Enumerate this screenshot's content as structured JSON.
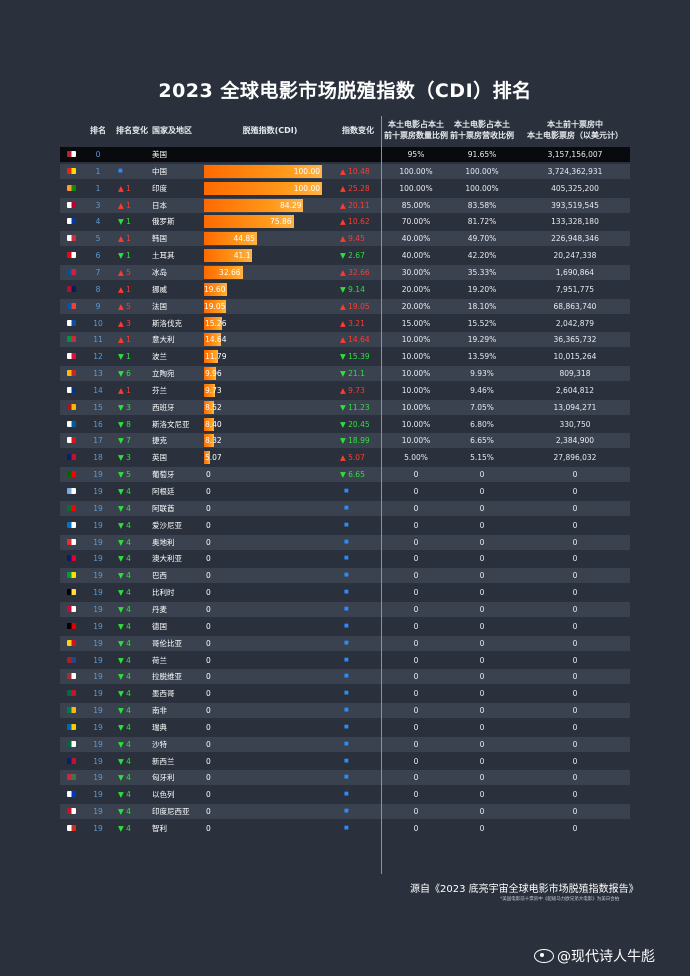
{
  "title": "2023 全球电影市场脱殖指数（CDI）排名",
  "headers": {
    "rank": "排名",
    "change": "排名变化",
    "country": "国家及地区",
    "cdi": "脱殖指数(CDI)",
    "index_change": "指数变化",
    "count_ratio_1": "本土电影占本土",
    "count_ratio_2": "前十票房数量比例",
    "revenue_ratio_1": "本土电影占本土",
    "revenue_ratio_2": "前十票房营收比例",
    "box_office_1": "本土前十票房中",
    "box_office_2": "本土电影票房（以美元计）"
  },
  "source": "源自《2023 底亮宇宙全球电影市场脱殖指数报告》",
  "note": "*美国电影前十票房中《超级马力欧兄弟大电影》为美日合拍",
  "watermark": "@现代诗人牛彪",
  "colors": {
    "up": "#ff3b2f",
    "down": "#2ee03a",
    "flat": "#2b8cff",
    "bar": "#ff7a00"
  },
  "chart_data": {
    "type": "table",
    "title": "2023 全球电影市场脱殖指数（CDI）排名",
    "rows": [
      {
        "rank": "0",
        "change_dir": "none",
        "change": "",
        "country": "美国",
        "cdi": null,
        "cdi_label": "",
        "idx_dir": "none",
        "idx_change": "",
        "count_ratio": "95%",
        "revenue_ratio": "91.65%",
        "box_office": "3,157,156,007",
        "flag": [
          "#b22234",
          "#ffffff"
        ]
      },
      {
        "rank": "1",
        "change_dir": "flat",
        "change": "",
        "country": "中国",
        "cdi": 100,
        "cdi_label": "100.00",
        "idx_dir": "up",
        "idx_change": "10.48",
        "count_ratio": "100.00%",
        "revenue_ratio": "100.00%",
        "box_office": "3,724,362,931",
        "flag": [
          "#de2910",
          "#ffde00"
        ]
      },
      {
        "rank": "1",
        "change_dir": "up",
        "change": "1",
        "country": "印度",
        "cdi": 100,
        "cdi_label": "100.00",
        "idx_dir": "up",
        "idx_change": "25.28",
        "count_ratio": "100.00%",
        "revenue_ratio": "100.00%",
        "box_office": "405,325,200",
        "flag": [
          "#ff9933",
          "#138808"
        ]
      },
      {
        "rank": "3",
        "change_dir": "up",
        "change": "1",
        "country": "日本",
        "cdi": 84.29,
        "cdi_label": "84.29",
        "idx_dir": "up",
        "idx_change": "20.11",
        "count_ratio": "85.00%",
        "revenue_ratio": "83.58%",
        "box_office": "393,519,545",
        "flag": [
          "#ffffff",
          "#bc002d"
        ]
      },
      {
        "rank": "4",
        "change_dir": "down",
        "change": "1",
        "country": "俄罗斯",
        "cdi": 75.86,
        "cdi_label": "75.86",
        "idx_dir": "up",
        "idx_change": "10.62",
        "count_ratio": "70.00%",
        "revenue_ratio": "81.72%",
        "box_office": "133,328,180",
        "flag": [
          "#ffffff",
          "#0039a6"
        ]
      },
      {
        "rank": "5",
        "change_dir": "up",
        "change": "1",
        "country": "韩国",
        "cdi": 44.85,
        "cdi_label": "44.85",
        "idx_dir": "up",
        "idx_change": "9.45",
        "count_ratio": "40.00%",
        "revenue_ratio": "49.70%",
        "box_office": "226,948,346",
        "flag": [
          "#ffffff",
          "#cd2e3a"
        ]
      },
      {
        "rank": "6",
        "change_dir": "down",
        "change": "1",
        "country": "土耳其",
        "cdi": 41.1,
        "cdi_label": "41.1",
        "idx_dir": "down",
        "idx_change": "2.67",
        "count_ratio": "40.00%",
        "revenue_ratio": "42.20%",
        "box_office": "20,247,338",
        "flag": [
          "#e30a17",
          "#ffffff"
        ]
      },
      {
        "rank": "7",
        "change_dir": "up",
        "change": "5",
        "country": "冰岛",
        "cdi": 32.66,
        "cdi_label": "32.66",
        "idx_dir": "up",
        "idx_change": "32.66",
        "count_ratio": "30.00%",
        "revenue_ratio": "35.33%",
        "box_office": "1,690,864",
        "flag": [
          "#02529c",
          "#dc1e35"
        ]
      },
      {
        "rank": "8",
        "change_dir": "up",
        "change": "1",
        "country": "挪威",
        "cdi": 19.6,
        "cdi_label": "19.60",
        "idx_dir": "down",
        "idx_change": "9.14",
        "count_ratio": "20.00%",
        "revenue_ratio": "19.20%",
        "box_office": "7,951,775",
        "flag": [
          "#ba0c2f",
          "#00205b"
        ]
      },
      {
        "rank": "9",
        "change_dir": "up",
        "change": "5",
        "country": "法国",
        "cdi": 19.05,
        "cdi_label": "19.05",
        "idx_dir": "up",
        "idx_change": "19.05",
        "count_ratio": "20.00%",
        "revenue_ratio": "18.10%",
        "box_office": "68,863,740",
        "flag": [
          "#0055a4",
          "#ef4135"
        ]
      },
      {
        "rank": "10",
        "change_dir": "up",
        "change": "3",
        "country": "斯洛伐克",
        "cdi": 15.26,
        "cdi_label": "15.26",
        "idx_dir": "up",
        "idx_change": "3.21",
        "count_ratio": "15.00%",
        "revenue_ratio": "15.52%",
        "box_office": "2,042,879",
        "flag": [
          "#ffffff",
          "#0b4ea2"
        ]
      },
      {
        "rank": "11",
        "change_dir": "up",
        "change": "1",
        "country": "意大利",
        "cdi": 14.64,
        "cdi_label": "14.64",
        "idx_dir": "up",
        "idx_change": "14.64",
        "count_ratio": "10.00%",
        "revenue_ratio": "19.29%",
        "box_office": "36,365,732",
        "flag": [
          "#009246",
          "#ce2b37"
        ]
      },
      {
        "rank": "12",
        "change_dir": "down",
        "change": "1",
        "country": "波兰",
        "cdi": 11.79,
        "cdi_label": "11.79",
        "idx_dir": "down",
        "idx_change": "15.39",
        "count_ratio": "10.00%",
        "revenue_ratio": "13.59%",
        "box_office": "10,015,264",
        "flag": [
          "#ffffff",
          "#dc143c"
        ]
      },
      {
        "rank": "13",
        "change_dir": "down",
        "change": "6",
        "country": "立陶宛",
        "cdi": 9.96,
        "cdi_label": "9.96",
        "idx_dir": "down",
        "idx_change": "21.1",
        "count_ratio": "10.00%",
        "revenue_ratio": "9.93%",
        "box_office": "809,318",
        "flag": [
          "#fdb913",
          "#c1272d"
        ]
      },
      {
        "rank": "14",
        "change_dir": "up",
        "change": "1",
        "country": "芬兰",
        "cdi": 9.73,
        "cdi_label": "9.73",
        "idx_dir": "up",
        "idx_change": "9.73",
        "count_ratio": "10.00%",
        "revenue_ratio": "9.46%",
        "box_office": "2,604,812",
        "flag": [
          "#ffffff",
          "#003580"
        ]
      },
      {
        "rank": "15",
        "change_dir": "down",
        "change": "3",
        "country": "西班牙",
        "cdi": 8.52,
        "cdi_label": "8.52",
        "idx_dir": "down",
        "idx_change": "11.23",
        "count_ratio": "10.00%",
        "revenue_ratio": "7.05%",
        "box_office": "13,094,271",
        "flag": [
          "#aa151b",
          "#f1bf00"
        ]
      },
      {
        "rank": "16",
        "change_dir": "down",
        "change": "8",
        "country": "斯洛文尼亚",
        "cdi": 8.4,
        "cdi_label": "8.40",
        "idx_dir": "down",
        "idx_change": "20.45",
        "count_ratio": "10.00%",
        "revenue_ratio": "6.80%",
        "box_office": "330,750",
        "flag": [
          "#ffffff",
          "#005da4"
        ]
      },
      {
        "rank": "17",
        "change_dir": "down",
        "change": "7",
        "country": "捷克",
        "cdi": 8.32,
        "cdi_label": "8.32",
        "idx_dir": "down",
        "idx_change": "18.99",
        "count_ratio": "10.00%",
        "revenue_ratio": "6.65%",
        "box_office": "2,384,900",
        "flag": [
          "#ffffff",
          "#d7141a"
        ]
      },
      {
        "rank": "18",
        "change_dir": "down",
        "change": "3",
        "country": "英国",
        "cdi": 5.07,
        "cdi_label": "5.07",
        "idx_dir": "up",
        "idx_change": "5.07",
        "count_ratio": "5.00%",
        "revenue_ratio": "5.15%",
        "box_office": "27,896,032",
        "flag": [
          "#012169",
          "#c8102e"
        ]
      },
      {
        "rank": "19",
        "change_dir": "down",
        "change": "5",
        "country": "葡萄牙",
        "cdi": 0,
        "cdi_label": "0",
        "idx_dir": "down",
        "idx_change": "6.65",
        "count_ratio": "0",
        "revenue_ratio": "0",
        "box_office": "0",
        "flag": [
          "#006600",
          "#ff0000"
        ]
      },
      {
        "rank": "19",
        "change_dir": "down",
        "change": "4",
        "country": "阿根廷",
        "cdi": 0,
        "cdi_label": "0",
        "idx_dir": "flat",
        "idx_change": "",
        "count_ratio": "0",
        "revenue_ratio": "0",
        "box_office": "0",
        "flag": [
          "#74acdf",
          "#ffffff"
        ]
      },
      {
        "rank": "19",
        "change_dir": "down",
        "change": "4",
        "country": "阿联酋",
        "cdi": 0,
        "cdi_label": "0",
        "idx_dir": "flat",
        "idx_change": "",
        "count_ratio": "0",
        "revenue_ratio": "0",
        "box_office": "0",
        "flag": [
          "#00732f",
          "#ff0000"
        ]
      },
      {
        "rank": "19",
        "change_dir": "down",
        "change": "4",
        "country": "爱沙尼亚",
        "cdi": 0,
        "cdi_label": "0",
        "idx_dir": "flat",
        "idx_change": "",
        "count_ratio": "0",
        "revenue_ratio": "0",
        "box_office": "0",
        "flag": [
          "#0072ce",
          "#ffffff"
        ]
      },
      {
        "rank": "19",
        "change_dir": "down",
        "change": "4",
        "country": "奥地利",
        "cdi": 0,
        "cdi_label": "0",
        "idx_dir": "flat",
        "idx_change": "",
        "count_ratio": "0",
        "revenue_ratio": "0",
        "box_office": "0",
        "flag": [
          "#ed2939",
          "#ffffff"
        ]
      },
      {
        "rank": "19",
        "change_dir": "down",
        "change": "4",
        "country": "澳大利亚",
        "cdi": 0,
        "cdi_label": "0",
        "idx_dir": "flat",
        "idx_change": "",
        "count_ratio": "0",
        "revenue_ratio": "0",
        "box_office": "0",
        "flag": [
          "#012169",
          "#e4002b"
        ]
      },
      {
        "rank": "19",
        "change_dir": "down",
        "change": "4",
        "country": "巴西",
        "cdi": 0,
        "cdi_label": "0",
        "idx_dir": "flat",
        "idx_change": "",
        "count_ratio": "0",
        "revenue_ratio": "0",
        "box_office": "0",
        "flag": [
          "#009c3b",
          "#ffdf00"
        ]
      },
      {
        "rank": "19",
        "change_dir": "down",
        "change": "4",
        "country": "比利时",
        "cdi": 0,
        "cdi_label": "0",
        "idx_dir": "flat",
        "idx_change": "",
        "count_ratio": "0",
        "revenue_ratio": "0",
        "box_office": "0",
        "flag": [
          "#000000",
          "#fae042"
        ]
      },
      {
        "rank": "19",
        "change_dir": "down",
        "change": "4",
        "country": "丹麦",
        "cdi": 0,
        "cdi_label": "0",
        "idx_dir": "flat",
        "idx_change": "",
        "count_ratio": "0",
        "revenue_ratio": "0",
        "box_office": "0",
        "flag": [
          "#c60c30",
          "#ffffff"
        ]
      },
      {
        "rank": "19",
        "change_dir": "down",
        "change": "4",
        "country": "德国",
        "cdi": 0,
        "cdi_label": "0",
        "idx_dir": "flat",
        "idx_change": "",
        "count_ratio": "0",
        "revenue_ratio": "0",
        "box_office": "0",
        "flag": [
          "#000000",
          "#dd0000"
        ]
      },
      {
        "rank": "19",
        "change_dir": "down",
        "change": "4",
        "country": "哥伦比亚",
        "cdi": 0,
        "cdi_label": "0",
        "idx_dir": "flat",
        "idx_change": "",
        "count_ratio": "0",
        "revenue_ratio": "0",
        "box_office": "0",
        "flag": [
          "#fcd116",
          "#ce1126"
        ]
      },
      {
        "rank": "19",
        "change_dir": "down",
        "change": "4",
        "country": "荷兰",
        "cdi": 0,
        "cdi_label": "0",
        "idx_dir": "flat",
        "idx_change": "",
        "count_ratio": "0",
        "revenue_ratio": "0",
        "box_office": "0",
        "flag": [
          "#ae1c28",
          "#21468b"
        ]
      },
      {
        "rank": "19",
        "change_dir": "down",
        "change": "4",
        "country": "拉脱维亚",
        "cdi": 0,
        "cdi_label": "0",
        "idx_dir": "flat",
        "idx_change": "",
        "count_ratio": "0",
        "revenue_ratio": "0",
        "box_office": "0",
        "flag": [
          "#9e3039",
          "#ffffff"
        ]
      },
      {
        "rank": "19",
        "change_dir": "down",
        "change": "4",
        "country": "墨西哥",
        "cdi": 0,
        "cdi_label": "0",
        "idx_dir": "flat",
        "idx_change": "",
        "count_ratio": "0",
        "revenue_ratio": "0",
        "box_office": "0",
        "flag": [
          "#006847",
          "#ce1126"
        ]
      },
      {
        "rank": "19",
        "change_dir": "down",
        "change": "4",
        "country": "南非",
        "cdi": 0,
        "cdi_label": "0",
        "idx_dir": "flat",
        "idx_change": "",
        "count_ratio": "0",
        "revenue_ratio": "0",
        "box_office": "0",
        "flag": [
          "#007a4d",
          "#ffb612"
        ]
      },
      {
        "rank": "19",
        "change_dir": "down",
        "change": "4",
        "country": "瑞典",
        "cdi": 0,
        "cdi_label": "0",
        "idx_dir": "flat",
        "idx_change": "",
        "count_ratio": "0",
        "revenue_ratio": "0",
        "box_office": "0",
        "flag": [
          "#006aa7",
          "#fecc00"
        ]
      },
      {
        "rank": "19",
        "change_dir": "down",
        "change": "4",
        "country": "沙特",
        "cdi": 0,
        "cdi_label": "0",
        "idx_dir": "flat",
        "idx_change": "",
        "count_ratio": "0",
        "revenue_ratio": "0",
        "box_office": "0",
        "flag": [
          "#006c35",
          "#ffffff"
        ]
      },
      {
        "rank": "19",
        "change_dir": "down",
        "change": "4",
        "country": "新西兰",
        "cdi": 0,
        "cdi_label": "0",
        "idx_dir": "flat",
        "idx_change": "",
        "count_ratio": "0",
        "revenue_ratio": "0",
        "box_office": "0",
        "flag": [
          "#012169",
          "#c8102e"
        ]
      },
      {
        "rank": "19",
        "change_dir": "down",
        "change": "4",
        "country": "匈牙利",
        "cdi": 0,
        "cdi_label": "0",
        "idx_dir": "flat",
        "idx_change": "",
        "count_ratio": "0",
        "revenue_ratio": "0",
        "box_office": "0",
        "flag": [
          "#ce2939",
          "#477050"
        ]
      },
      {
        "rank": "19",
        "change_dir": "down",
        "change": "4",
        "country": "以色列",
        "cdi": 0,
        "cdi_label": "0",
        "idx_dir": "flat",
        "idx_change": "",
        "count_ratio": "0",
        "revenue_ratio": "0",
        "box_office": "0",
        "flag": [
          "#ffffff",
          "#0038b8"
        ]
      },
      {
        "rank": "19",
        "change_dir": "down",
        "change": "4",
        "country": "印度尼西亚",
        "cdi": 0,
        "cdi_label": "0",
        "idx_dir": "flat",
        "idx_change": "",
        "count_ratio": "0",
        "revenue_ratio": "0",
        "box_office": "0",
        "flag": [
          "#ce1126",
          "#ffffff"
        ]
      },
      {
        "rank": "19",
        "change_dir": "down",
        "change": "4",
        "country": "智利",
        "cdi": 0,
        "cdi_label": "0",
        "idx_dir": "flat",
        "idx_change": "",
        "count_ratio": "0",
        "revenue_ratio": "0",
        "box_office": "0",
        "flag": [
          "#ffffff",
          "#d52b1e"
        ]
      }
    ]
  }
}
